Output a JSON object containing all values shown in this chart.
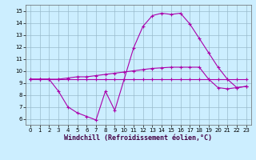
{
  "xlabel": "Windchill (Refroidissement éolien,°C)",
  "background_color": "#cceeff",
  "line_color": "#aa00aa",
  "xlim": [
    -0.5,
    23.5
  ],
  "ylim": [
    5.5,
    15.5
  ],
  "xticks": [
    0,
    1,
    2,
    3,
    4,
    5,
    6,
    7,
    8,
    9,
    10,
    11,
    12,
    13,
    14,
    15,
    16,
    17,
    18,
    19,
    20,
    21,
    22,
    23
  ],
  "yticks": [
    6,
    7,
    8,
    9,
    10,
    11,
    12,
    13,
    14,
    15
  ],
  "line1_x": [
    0,
    1,
    2,
    3,
    4,
    5,
    6,
    7,
    8,
    9,
    10,
    11,
    12,
    13,
    14,
    15,
    16,
    17,
    18,
    19,
    20,
    21,
    22,
    23
  ],
  "line1_y": [
    9.3,
    9.3,
    9.3,
    9.3,
    9.3,
    9.3,
    9.3,
    9.3,
    9.3,
    9.3,
    9.3,
    9.3,
    9.3,
    9.3,
    9.3,
    9.3,
    9.3,
    9.3,
    9.3,
    9.3,
    9.3,
    9.3,
    9.3,
    9.3
  ],
  "line2_x": [
    0,
    1,
    2,
    3,
    4,
    5,
    6,
    7,
    8,
    9,
    10,
    11,
    12,
    13,
    14,
    15,
    16,
    17,
    18,
    19,
    20,
    21,
    22,
    23
  ],
  "line2_y": [
    9.3,
    9.3,
    9.3,
    9.3,
    9.4,
    9.5,
    9.5,
    9.6,
    9.7,
    9.8,
    9.9,
    10.0,
    10.1,
    10.2,
    10.25,
    10.3,
    10.3,
    10.3,
    10.3,
    9.3,
    8.6,
    8.5,
    8.6,
    8.7
  ],
  "line3_x": [
    0,
    1,
    2,
    3,
    4,
    5,
    6,
    7,
    8,
    9,
    10,
    11,
    12,
    13,
    14,
    15,
    16,
    17,
    18,
    19,
    20,
    21,
    22,
    23
  ],
  "line3_y": [
    9.3,
    9.3,
    9.3,
    8.3,
    7.0,
    6.5,
    6.2,
    5.9,
    8.3,
    6.7,
    9.3,
    11.9,
    13.7,
    14.6,
    14.8,
    14.7,
    14.8,
    13.9,
    12.7,
    11.5,
    10.3,
    9.3,
    8.6,
    8.7
  ],
  "grid_color": "#99bbcc",
  "marker": "+",
  "marker_size": 3,
  "linewidth": 0.8,
  "xlabel_fontsize": 6,
  "tick_fontsize": 5
}
